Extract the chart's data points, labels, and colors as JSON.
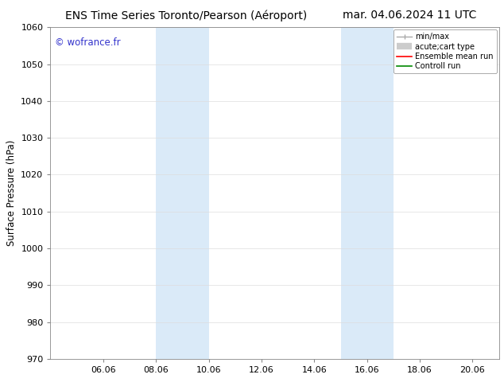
{
  "title_left": "ENS Time Series Toronto/Pearson (Aéroport)",
  "title_right": "mar. 04.06.2024 11 UTC",
  "ylabel": "Surface Pressure (hPa)",
  "ylim": [
    970,
    1060
  ],
  "yticks": [
    970,
    980,
    990,
    1000,
    1010,
    1020,
    1030,
    1040,
    1050,
    1060
  ],
  "xtick_labels": [
    "06.06",
    "08.06",
    "10.06",
    "12.06",
    "14.06",
    "16.06",
    "18.06",
    "20.06"
  ],
  "xtick_positions": [
    2,
    4,
    6,
    8,
    10,
    12,
    14,
    16
  ],
  "xlim": [
    0,
    17.0
  ],
  "shaded_regions": [
    {
      "xmin": 4.0,
      "xmax": 6.0
    },
    {
      "xmin": 11.0,
      "xmax": 12.0
    },
    {
      "xmin": 12.0,
      "xmax": 13.0
    }
  ],
  "shaded_color": "#daeaf8",
  "watermark_text": "© wofrance.fr",
  "watermark_color": "#3333cc",
  "background_color": "#ffffff",
  "legend_labels": [
    "min/max",
    "acute;cart type",
    "Ensemble mean run",
    "Controll run"
  ],
  "legend_colors": [
    "#aaaaaa",
    "#cccccc",
    "#ff0000",
    "#008800"
  ],
  "title_fontsize": 10,
  "ylabel_fontsize": 8.5,
  "tick_fontsize": 8,
  "legend_fontsize": 7,
  "spine_color": "#888888",
  "grid_color": "#dddddd"
}
